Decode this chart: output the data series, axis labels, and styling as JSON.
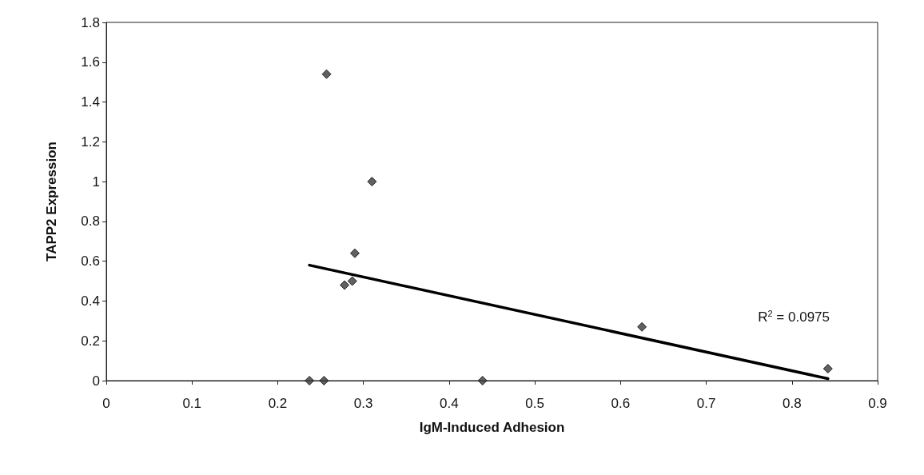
{
  "chart_data": {
    "type": "scatter",
    "xlabel": "IgM-Induced Adhesion",
    "ylabel": "TAPP2 Expression",
    "xlim": [
      0,
      0.9
    ],
    "xticks": [
      0,
      0.1,
      0.2,
      0.3,
      0.4,
      0.5,
      0.6,
      0.7,
      0.8,
      0.9
    ],
    "ylim": [
      0,
      1.8
    ],
    "yticks": [
      0,
      0.2,
      0.4,
      0.6,
      0.8,
      1,
      1.2,
      1.4,
      1.6,
      1.8
    ],
    "grid": false,
    "marker": "diamond",
    "series": [
      {
        "color": "#3a3a3a",
        "x": [
          0.237,
          0.254,
          0.257,
          0.278,
          0.287,
          0.29,
          0.31,
          0.439,
          0.625,
          0.842
        ],
        "values": [
          0,
          0,
          1.54,
          0.48,
          0.5,
          0.64,
          1.0,
          0,
          0.27,
          0.06
        ]
      },
      {
        "type": "line",
        "marker": "none",
        "color": "#000000",
        "x": [
          0.237,
          0.842
        ],
        "values": [
          0.58,
          0.01
        ]
      }
    ],
    "annotations": [
      "R$^{2}$ = 0.0975"
    ]
  }
}
